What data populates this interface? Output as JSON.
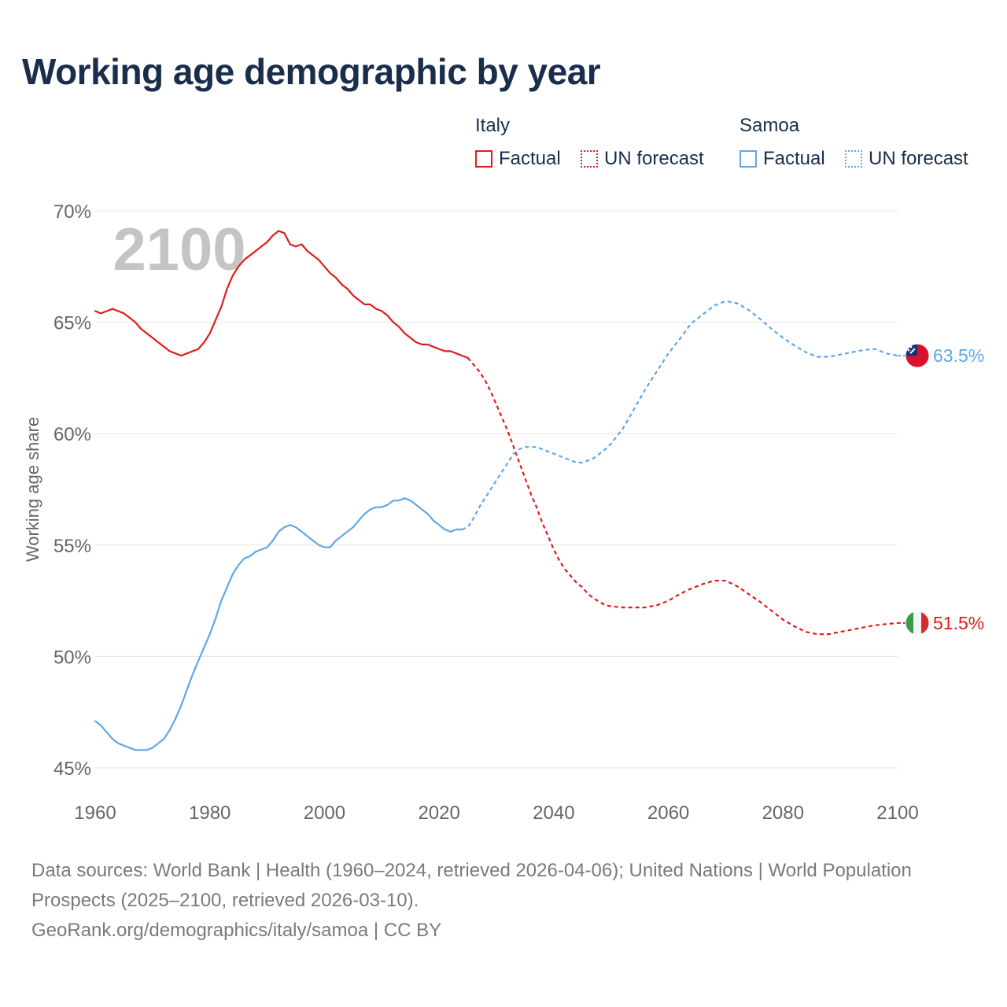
{
  "chart_data": {
    "type": "line",
    "title": "Working age demographic by year",
    "ylabel": "Working age share",
    "xlabel": "",
    "watermark_year": "2100",
    "xlim": [
      1960,
      2100
    ],
    "ylim": [
      45,
      70
    ],
    "x_ticks": [
      1960,
      1980,
      2000,
      2020,
      2040,
      2060,
      2080,
      2100
    ],
    "x_tick_labels": [
      "1960",
      "1980",
      "2000",
      "2020",
      "2040",
      "2060",
      "2080",
      "2100"
    ],
    "y_ticks": [
      45,
      50,
      55,
      60,
      65,
      70
    ],
    "y_tick_labels": [
      "45%",
      "50%",
      "55%",
      "60%",
      "65%",
      "70%"
    ],
    "legend": {
      "groups": [
        {
          "country": "Italy",
          "factual_label": "Factual",
          "forecast_label": "UN forecast",
          "color": "#e31a1c"
        },
        {
          "country": "Samoa",
          "factual_label": "Factual",
          "forecast_label": "UN forecast",
          "color": "#5fa8e6"
        }
      ]
    },
    "series": [
      {
        "name": "Italy",
        "color": "#e31a1c",
        "end_label": "51.5%",
        "flag": "italy-flag",
        "factual": [
          [
            1960,
            65.5
          ],
          [
            1961,
            65.4
          ],
          [
            1962,
            65.5
          ],
          [
            1963,
            65.6
          ],
          [
            1964,
            65.5
          ],
          [
            1965,
            65.4
          ],
          [
            1966,
            65.2
          ],
          [
            1967,
            65.0
          ],
          [
            1968,
            64.7
          ],
          [
            1969,
            64.5
          ],
          [
            1970,
            64.3
          ],
          [
            1971,
            64.1
          ],
          [
            1972,
            63.9
          ],
          [
            1973,
            63.7
          ],
          [
            1974,
            63.6
          ],
          [
            1975,
            63.5
          ],
          [
            1976,
            63.6
          ],
          [
            1977,
            63.7
          ],
          [
            1978,
            63.8
          ],
          [
            1979,
            64.1
          ],
          [
            1980,
            64.5
          ],
          [
            1981,
            65.1
          ],
          [
            1982,
            65.7
          ],
          [
            1983,
            66.5
          ],
          [
            1984,
            67.1
          ],
          [
            1985,
            67.5
          ],
          [
            1986,
            67.8
          ],
          [
            1987,
            68.0
          ],
          [
            1988,
            68.2
          ],
          [
            1989,
            68.4
          ],
          [
            1990,
            68.6
          ],
          [
            1991,
            68.9
          ],
          [
            1992,
            69.1
          ],
          [
            1993,
            69.0
          ],
          [
            1994,
            68.5
          ],
          [
            1995,
            68.4
          ],
          [
            1996,
            68.5
          ],
          [
            1997,
            68.2
          ],
          [
            1998,
            68.0
          ],
          [
            1999,
            67.8
          ],
          [
            2000,
            67.5
          ],
          [
            2001,
            67.2
          ],
          [
            2002,
            67.0
          ],
          [
            2003,
            66.7
          ],
          [
            2004,
            66.5
          ],
          [
            2005,
            66.2
          ],
          [
            2006,
            66.0
          ],
          [
            2007,
            65.8
          ],
          [
            2008,
            65.8
          ],
          [
            2009,
            65.6
          ],
          [
            2010,
            65.5
          ],
          [
            2011,
            65.3
          ],
          [
            2012,
            65.0
          ],
          [
            2013,
            64.8
          ],
          [
            2014,
            64.5
          ],
          [
            2015,
            64.3
          ],
          [
            2016,
            64.1
          ],
          [
            2017,
            64.0
          ],
          [
            2018,
            64.0
          ],
          [
            2019,
            63.9
          ],
          [
            2020,
            63.8
          ],
          [
            2021,
            63.7
          ],
          [
            2022,
            63.7
          ],
          [
            2023,
            63.6
          ],
          [
            2024,
            63.5
          ],
          [
            2025,
            63.4
          ]
        ],
        "forecast": [
          [
            2025,
            63.4
          ],
          [
            2026,
            63.1
          ],
          [
            2027,
            62.8
          ],
          [
            2028,
            62.4
          ],
          [
            2029,
            61.9
          ],
          [
            2030,
            61.3
          ],
          [
            2031,
            60.7
          ],
          [
            2032,
            60.1
          ],
          [
            2033,
            59.4
          ],
          [
            2034,
            58.7
          ],
          [
            2035,
            58.0
          ],
          [
            2036,
            57.3
          ],
          [
            2037,
            56.7
          ],
          [
            2038,
            56.0
          ],
          [
            2039,
            55.4
          ],
          [
            2040,
            54.8
          ],
          [
            2041,
            54.3
          ],
          [
            2042,
            53.9
          ],
          [
            2043,
            53.6
          ],
          [
            2044,
            53.3
          ],
          [
            2045,
            53.1
          ],
          [
            2046,
            52.8
          ],
          [
            2047,
            52.6
          ],
          [
            2048,
            52.45
          ],
          [
            2049,
            52.3
          ],
          [
            2050,
            52.25
          ],
          [
            2052,
            52.2
          ],
          [
            2054,
            52.2
          ],
          [
            2056,
            52.2
          ],
          [
            2058,
            52.3
          ],
          [
            2060,
            52.5
          ],
          [
            2062,
            52.8
          ],
          [
            2064,
            53.05
          ],
          [
            2066,
            53.25
          ],
          [
            2068,
            53.4
          ],
          [
            2070,
            53.4
          ],
          [
            2072,
            53.15
          ],
          [
            2074,
            52.8
          ],
          [
            2076,
            52.45
          ],
          [
            2078,
            52.05
          ],
          [
            2080,
            51.65
          ],
          [
            2082,
            51.35
          ],
          [
            2084,
            51.1
          ],
          [
            2086,
            51.0
          ],
          [
            2088,
            51.0
          ],
          [
            2090,
            51.1
          ],
          [
            2092,
            51.2
          ],
          [
            2094,
            51.3
          ],
          [
            2096,
            51.4
          ],
          [
            2098,
            51.45
          ],
          [
            2100,
            51.5
          ]
        ]
      },
      {
        "name": "Samoa",
        "color": "#5fa8e6",
        "end_label": "63.5%",
        "flag": "samoa-flag",
        "factual": [
          [
            1960,
            47.1
          ],
          [
            1961,
            46.9
          ],
          [
            1962,
            46.6
          ],
          [
            1963,
            46.3
          ],
          [
            1964,
            46.1
          ],
          [
            1965,
            46.0
          ],
          [
            1966,
            45.9
          ],
          [
            1967,
            45.8
          ],
          [
            1968,
            45.8
          ],
          [
            1969,
            45.8
          ],
          [
            1970,
            45.9
          ],
          [
            1971,
            46.1
          ],
          [
            1972,
            46.3
          ],
          [
            1973,
            46.7
          ],
          [
            1974,
            47.2
          ],
          [
            1975,
            47.8
          ],
          [
            1976,
            48.5
          ],
          [
            1977,
            49.2
          ],
          [
            1978,
            49.8
          ],
          [
            1979,
            50.4
          ],
          [
            1980,
            51.0
          ],
          [
            1981,
            51.7
          ],
          [
            1982,
            52.5
          ],
          [
            1983,
            53.1
          ],
          [
            1984,
            53.7
          ],
          [
            1985,
            54.1
          ],
          [
            1986,
            54.4
          ],
          [
            1987,
            54.5
          ],
          [
            1988,
            54.7
          ],
          [
            1989,
            54.8
          ],
          [
            1990,
            54.9
          ],
          [
            1991,
            55.2
          ],
          [
            1992,
            55.6
          ],
          [
            1993,
            55.8
          ],
          [
            1994,
            55.9
          ],
          [
            1995,
            55.8
          ],
          [
            1996,
            55.6
          ],
          [
            1997,
            55.4
          ],
          [
            1998,
            55.2
          ],
          [
            1999,
            55.0
          ],
          [
            2000,
            54.9
          ],
          [
            2001,
            54.9
          ],
          [
            2002,
            55.2
          ],
          [
            2003,
            55.4
          ],
          [
            2004,
            55.6
          ],
          [
            2005,
            55.8
          ],
          [
            2006,
            56.1
          ],
          [
            2007,
            56.4
          ],
          [
            2008,
            56.6
          ],
          [
            2009,
            56.7
          ],
          [
            2010,
            56.7
          ],
          [
            2011,
            56.8
          ],
          [
            2012,
            57.0
          ],
          [
            2013,
            57.0
          ],
          [
            2014,
            57.1
          ],
          [
            2015,
            57.0
          ],
          [
            2016,
            56.8
          ],
          [
            2017,
            56.6
          ],
          [
            2018,
            56.4
          ],
          [
            2019,
            56.1
          ],
          [
            2020,
            55.9
          ],
          [
            2021,
            55.7
          ],
          [
            2022,
            55.6
          ],
          [
            2023,
            55.7
          ],
          [
            2024,
            55.7
          ]
        ],
        "forecast": [
          [
            2024,
            55.7
          ],
          [
            2025,
            55.8
          ],
          [
            2026,
            56.2
          ],
          [
            2027,
            56.7
          ],
          [
            2028,
            57.1
          ],
          [
            2029,
            57.5
          ],
          [
            2030,
            57.9
          ],
          [
            2031,
            58.3
          ],
          [
            2032,
            58.7
          ],
          [
            2033,
            59.1
          ],
          [
            2034,
            59.3
          ],
          [
            2035,
            59.4
          ],
          [
            2036,
            59.4
          ],
          [
            2037,
            59.4
          ],
          [
            2038,
            59.3
          ],
          [
            2039,
            59.2
          ],
          [
            2040,
            59.1
          ],
          [
            2041,
            59.0
          ],
          [
            2042,
            58.9
          ],
          [
            2043,
            58.8
          ],
          [
            2044,
            58.7
          ],
          [
            2045,
            58.7
          ],
          [
            2046,
            58.8
          ],
          [
            2047,
            58.9
          ],
          [
            2048,
            59.1
          ],
          [
            2049,
            59.3
          ],
          [
            2050,
            59.55
          ],
          [
            2052,
            60.2
          ],
          [
            2054,
            61.1
          ],
          [
            2056,
            62.0
          ],
          [
            2058,
            62.8
          ],
          [
            2060,
            63.6
          ],
          [
            2062,
            64.25
          ],
          [
            2064,
            64.95
          ],
          [
            2066,
            65.35
          ],
          [
            2068,
            65.75
          ],
          [
            2070,
            65.95
          ],
          [
            2072,
            65.85
          ],
          [
            2074,
            65.55
          ],
          [
            2076,
            65.15
          ],
          [
            2078,
            64.7
          ],
          [
            2080,
            64.3
          ],
          [
            2082,
            63.95
          ],
          [
            2084,
            63.65
          ],
          [
            2086,
            63.45
          ],
          [
            2088,
            63.45
          ],
          [
            2090,
            63.55
          ],
          [
            2092,
            63.65
          ],
          [
            2094,
            63.75
          ],
          [
            2096,
            63.8
          ],
          [
            2098,
            63.6
          ],
          [
            2100,
            63.5
          ]
        ]
      }
    ]
  },
  "footer": {
    "line1": "Data sources: World Bank | Health (1960–2024, retrieved 2026-04-06); United Nations | World Population Prospects (2025–2100, retrieved 2026-03-10).",
    "line2": "GeoRank.org/demographics/italy/samoa | CC BY"
  }
}
